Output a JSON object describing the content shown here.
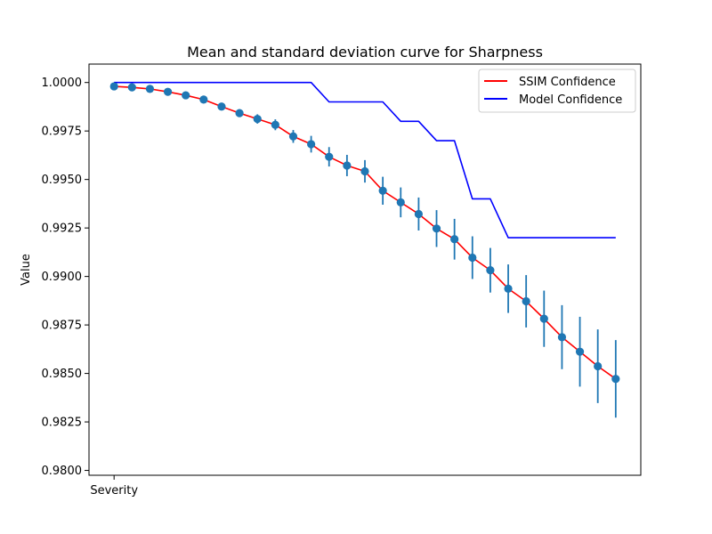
{
  "chart_data": {
    "type": "line",
    "title": "Mean and standard deviation curve for Sharpness",
    "xlabel": "",
    "ylabel": "Value",
    "xtick_labels": [
      "Severity"
    ],
    "x": [
      0,
      1,
      2,
      3,
      4,
      5,
      6,
      7,
      8,
      9,
      10,
      11,
      12,
      13,
      14,
      15,
      16,
      17,
      18,
      19,
      20,
      21,
      22,
      23,
      24,
      25,
      26,
      27,
      28
    ],
    "xlim": [
      -1.4,
      29.4
    ],
    "ylim": [
      0.97975,
      1.00095
    ],
    "yticks": [
      0.98,
      0.9825,
      0.985,
      0.9875,
      0.99,
      0.9925,
      0.995,
      0.9975,
      1.0
    ],
    "ytick_labels": [
      "0.9800",
      "0.9825",
      "0.9850",
      "0.9875",
      "0.9900",
      "0.9925",
      "0.9950",
      "0.9975",
      "1.0000"
    ],
    "grid": false,
    "legend_position": "upper right",
    "series": [
      {
        "name": "SSIM Confidence",
        "color": "#ff0000",
        "values": [
          0.9998,
          0.99975,
          0.99967,
          0.99952,
          0.99934,
          0.99912,
          0.99876,
          0.99842,
          0.99812,
          0.99782,
          0.99722,
          0.99682,
          0.99617,
          0.99572,
          0.99542,
          0.99442,
          0.99382,
          0.99322,
          0.99247,
          0.99192,
          0.99097,
          0.99032,
          0.98937,
          0.98872,
          0.98782,
          0.98687,
          0.98612,
          0.98537,
          0.98472
        ],
        "error": [
          5e-05,
          5e-05,
          5e-05,
          5e-05,
          6e-05,
          8e-05,
          0.00012,
          0.0002,
          0.00024,
          0.00028,
          0.00033,
          0.00043,
          0.0005,
          0.00055,
          0.00058,
          0.00072,
          0.00077,
          0.00085,
          0.00095,
          0.00105,
          0.0011,
          0.00115,
          0.00125,
          0.00135,
          0.00145,
          0.00165,
          0.0018,
          0.0019,
          0.002
        ]
      },
      {
        "name": "Model Confidence",
        "color": "#0000ff",
        "values": [
          1.0,
          1.0,
          1.0,
          1.0,
          1.0,
          1.0,
          1.0,
          1.0,
          1.0,
          1.0,
          1.0,
          1.0,
          0.999,
          0.999,
          0.999,
          0.999,
          0.998,
          0.998,
          0.997,
          0.997,
          0.994,
          0.994,
          0.992,
          0.992,
          0.992,
          0.992,
          0.992,
          0.992,
          0.992
        ]
      }
    ],
    "marker_color": "#1f77b4"
  }
}
